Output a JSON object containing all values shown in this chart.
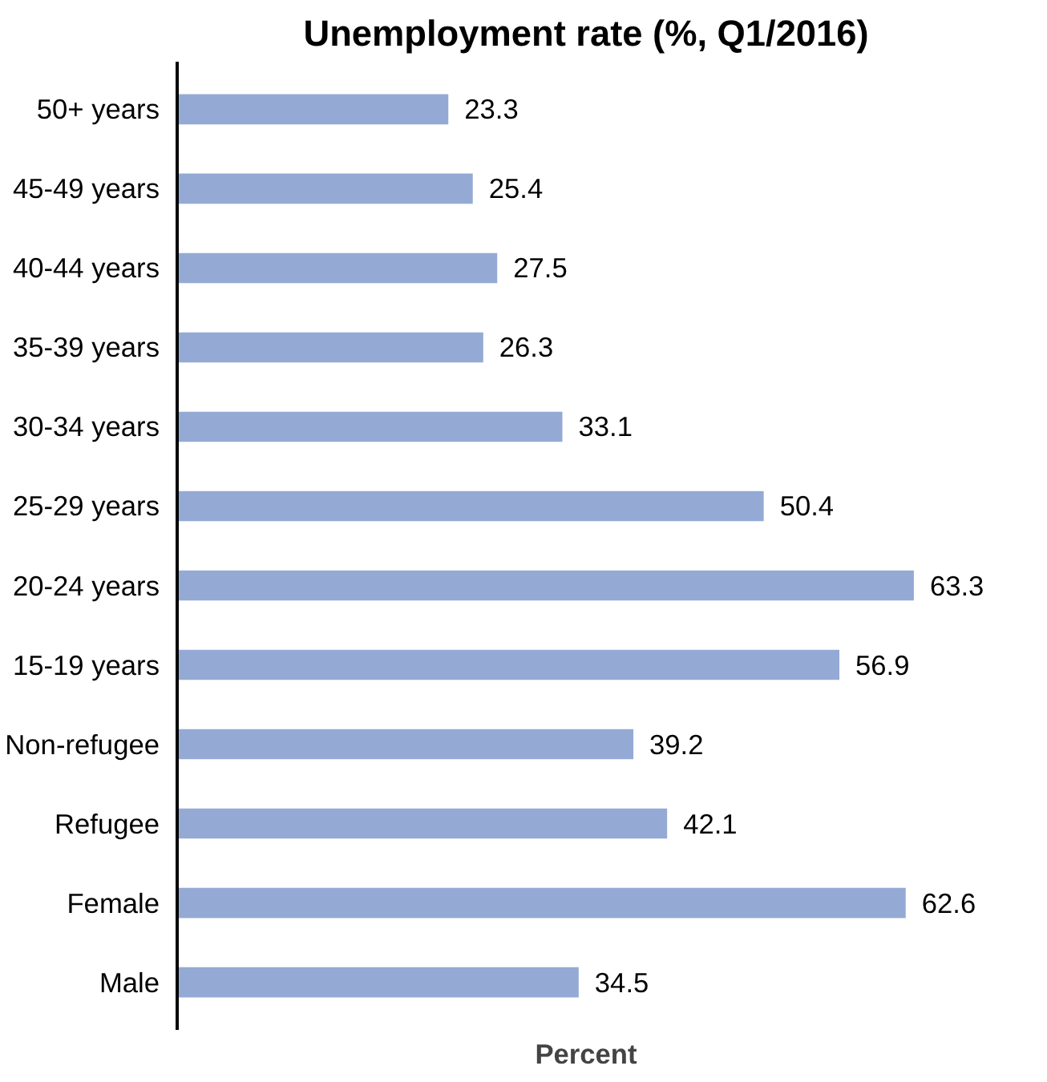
{
  "chart_data": {
    "type": "bar",
    "orientation": "horizontal",
    "title": "Unemployment rate (%, Q1/2016)",
    "xlabel": "Percent",
    "categories": [
      "50+ years",
      "45-49 years",
      "40-44 years",
      "35-39 years",
      "30-34 years",
      "25-29 years",
      "20-24 years",
      "15-19 years",
      "Non-refugee",
      "Refugee",
      "Female",
      "Male"
    ],
    "values": [
      23.3,
      25.4,
      27.5,
      26.3,
      33.1,
      50.4,
      63.3,
      56.9,
      39.2,
      42.1,
      62.6,
      34.5
    ],
    "color": "#94aad4",
    "data_labels": true,
    "tick_labels": "y",
    "grid": false
  }
}
